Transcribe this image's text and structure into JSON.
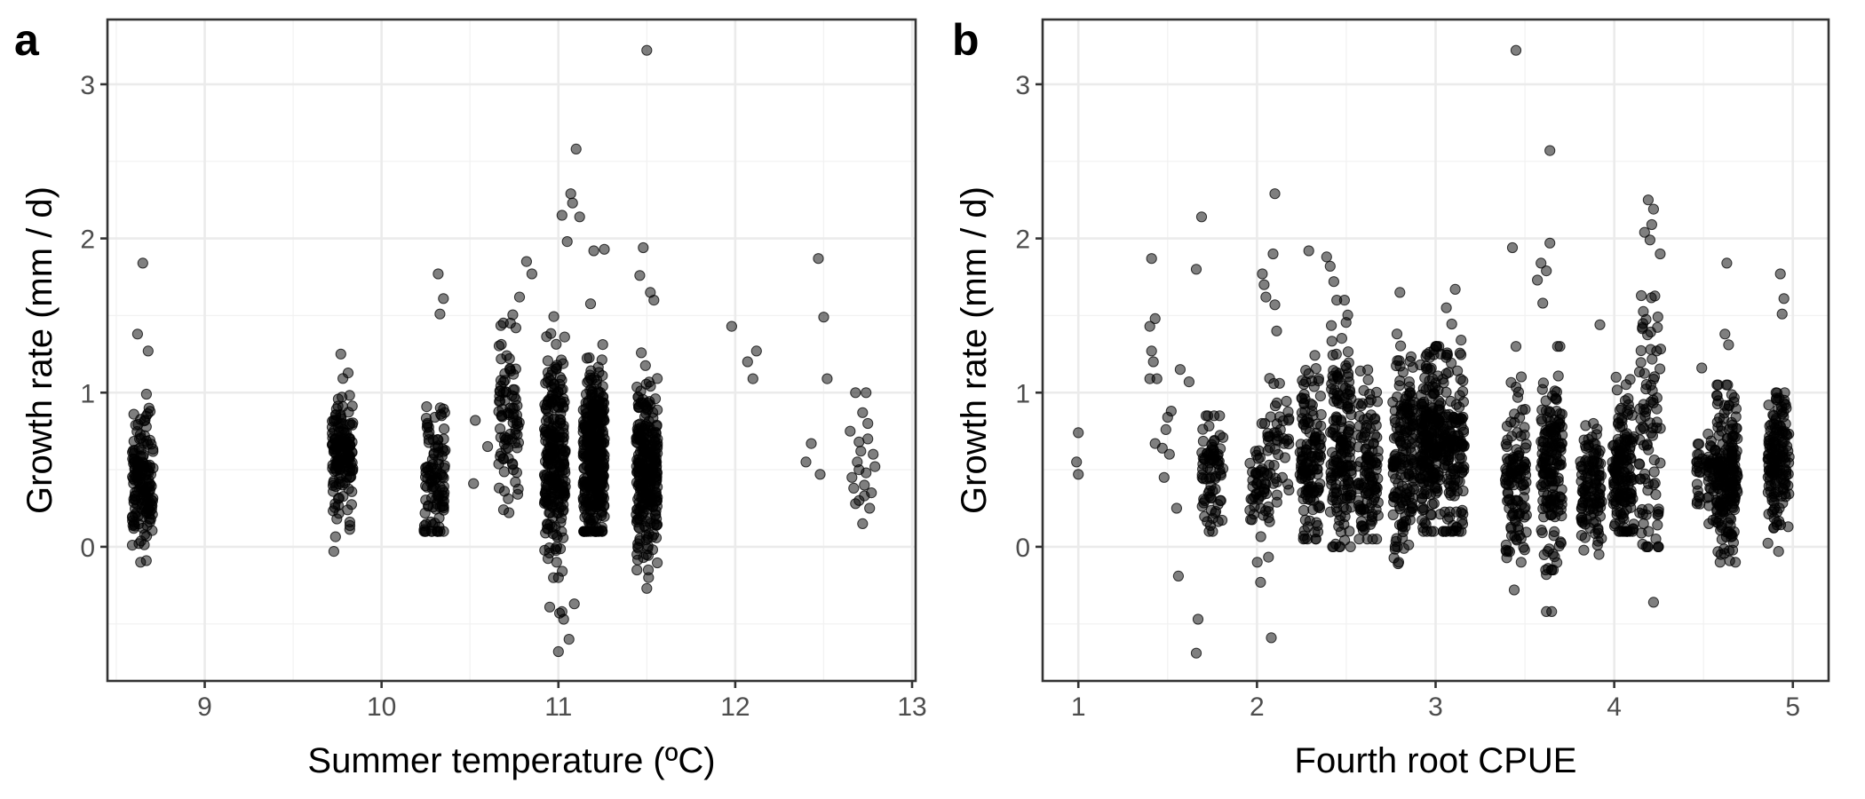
{
  "chart_data": [
    {
      "type": "scatter",
      "panel_label": "a",
      "xlabel": "Summer temperature (ºC)",
      "ylabel": "Growth rate (mm / d)",
      "xlim": [
        8.45,
        13.02
      ],
      "ylim": [
        -0.87,
        3.42
      ],
      "xticks": [
        9,
        10,
        11,
        12,
        13
      ],
      "yticks": [
        0,
        1,
        2,
        3
      ],
      "grid": true,
      "legend": "none",
      "point_color": "#000000",
      "point_opacity": 0.5,
      "clusters": [
        {
          "center": 8.65,
          "n": 160,
          "mean": 0.45,
          "sd": 0.22,
          "min": -0.1,
          "max": 1.4
        },
        {
          "center": 9.78,
          "n": 160,
          "mean": 0.6,
          "sd": 0.17,
          "min": -0.05,
          "max": 1.25
        },
        {
          "center": 10.3,
          "n": 110,
          "mean": 0.45,
          "sd": 0.22,
          "min": 0.1,
          "max": 1.1
        },
        {
          "center": 10.72,
          "n": 90,
          "mean": 0.85,
          "sd": 0.35,
          "min": 0.2,
          "max": 1.85
        },
        {
          "center": 10.98,
          "n": 260,
          "mean": 0.6,
          "sd": 0.35,
          "min": -0.7,
          "max": 2.0
        },
        {
          "center": 11.2,
          "n": 380,
          "mean": 0.6,
          "sd": 0.3,
          "min": 0.1,
          "max": 1.6
        },
        {
          "center": 11.5,
          "n": 280,
          "mean": 0.5,
          "sd": 0.28,
          "min": -0.15,
          "max": 1.5
        }
      ],
      "points": [
        {
          "x": 8.65,
          "y": 1.84
        },
        {
          "x": 8.62,
          "y": 1.38
        },
        {
          "x": 8.68,
          "y": 1.27
        },
        {
          "x": 8.67,
          "y": -0.09
        },
        {
          "x": 9.77,
          "y": 1.25
        },
        {
          "x": 9.73,
          "y": -0.03
        },
        {
          "x": 10.32,
          "y": 1.77
        },
        {
          "x": 10.35,
          "y": 1.61
        },
        {
          "x": 10.33,
          "y": 1.51
        },
        {
          "x": 10.34,
          "y": 0.85
        },
        {
          "x": 10.52,
          "y": 0.41
        },
        {
          "x": 10.53,
          "y": 0.82
        },
        {
          "x": 10.6,
          "y": 0.65
        },
        {
          "x": 10.82,
          "y": 1.85
        },
        {
          "x": 10.85,
          "y": 1.77
        },
        {
          "x": 10.78,
          "y": 1.62
        },
        {
          "x": 11.07,
          "y": 2.29
        },
        {
          "x": 11.08,
          "y": 2.23
        },
        {
          "x": 11.02,
          "y": 2.15
        },
        {
          "x": 11.1,
          "y": 2.58
        },
        {
          "x": 11.12,
          "y": 2.14
        },
        {
          "x": 11.05,
          "y": 1.98
        },
        {
          "x": 11.2,
          "y": 1.92
        },
        {
          "x": 11.26,
          "y": 1.93
        },
        {
          "x": 11.0,
          "y": -0.68
        },
        {
          "x": 11.03,
          "y": -0.47
        },
        {
          "x": 11.06,
          "y": -0.6
        },
        {
          "x": 11.02,
          "y": -0.42
        },
        {
          "x": 11.09,
          "y": -0.37
        },
        {
          "x": 11.0,
          "y": -0.2
        },
        {
          "x": 10.99,
          "y": -0.1
        },
        {
          "x": 11.5,
          "y": 3.22
        },
        {
          "x": 11.48,
          "y": 1.94
        },
        {
          "x": 11.46,
          "y": 1.76
        },
        {
          "x": 11.52,
          "y": 1.65
        },
        {
          "x": 11.54,
          "y": 1.6
        },
        {
          "x": 11.5,
          "y": -0.27
        },
        {
          "x": 11.51,
          "y": -0.2
        },
        {
          "x": 11.98,
          "y": 1.43
        },
        {
          "x": 12.07,
          "y": 1.2
        },
        {
          "x": 12.12,
          "y": 1.27
        },
        {
          "x": 12.1,
          "y": 1.09
        },
        {
          "x": 12.47,
          "y": 1.87
        },
        {
          "x": 12.5,
          "y": 1.49
        },
        {
          "x": 12.52,
          "y": 1.09
        },
        {
          "x": 12.43,
          "y": 0.67
        },
        {
          "x": 12.4,
          "y": 0.55
        },
        {
          "x": 12.48,
          "y": 0.47
        },
        {
          "x": 12.68,
          "y": 1.0
        },
        {
          "x": 12.74,
          "y": 1.0
        },
        {
          "x": 12.72,
          "y": 0.87
        },
        {
          "x": 12.7,
          "y": 0.3
        },
        {
          "x": 12.72,
          "y": 0.15
        },
        {
          "x": 12.65,
          "y": 0.75
        },
        {
          "x": 12.75,
          "y": 0.7
        },
        {
          "x": 12.78,
          "y": 0.6
        },
        {
          "x": 12.7,
          "y": 0.5
        },
        {
          "x": 12.66,
          "y": 0.45
        },
        {
          "x": 12.73,
          "y": 0.4
        },
        {
          "x": 12.77,
          "y": 0.35
        },
        {
          "x": 12.69,
          "y": 0.55
        },
        {
          "x": 12.76,
          "y": 0.25
        },
        {
          "x": 12.71,
          "y": 0.62
        },
        {
          "x": 12.67,
          "y": 0.38
        },
        {
          "x": 12.74,
          "y": 0.48
        },
        {
          "x": 12.79,
          "y": 0.52
        },
        {
          "x": 12.68,
          "y": 0.28
        },
        {
          "x": 12.75,
          "y": 0.8
        },
        {
          "x": 12.7,
          "y": 0.68
        },
        {
          "x": 12.73,
          "y": 0.33
        }
      ]
    },
    {
      "type": "scatter",
      "panel_label": "b",
      "xlabel": "Fourth root CPUE",
      "ylabel": "Growth rate (mm / d)",
      "xlim": [
        0.8,
        5.2
      ],
      "ylim": [
        -0.87,
        3.42
      ],
      "xticks": [
        1,
        2,
        3,
        4,
        5
      ],
      "yticks": [
        0,
        1,
        2,
        3
      ],
      "grid": true,
      "legend": "none",
      "point_color": "#000000",
      "point_opacity": 0.5,
      "clusters": [
        {
          "center": 1.75,
          "n": 80,
          "mean": 0.5,
          "sd": 0.2,
          "min": 0.1,
          "max": 0.85
        },
        {
          "center": 2.02,
          "n": 60,
          "mean": 0.4,
          "sd": 0.2,
          "min": -0.1,
          "max": 0.8
        },
        {
          "center": 2.12,
          "n": 40,
          "mean": 0.6,
          "sd": 0.25,
          "min": 0.1,
          "max": 1.1
        },
        {
          "center": 2.3,
          "n": 140,
          "mean": 0.6,
          "sd": 0.28,
          "min": 0.05,
          "max": 1.5
        },
        {
          "center": 2.47,
          "n": 170,
          "mean": 0.65,
          "sd": 0.35,
          "min": 0.0,
          "max": 1.6
        },
        {
          "center": 2.62,
          "n": 120,
          "mean": 0.5,
          "sd": 0.25,
          "min": 0.05,
          "max": 1.45
        },
        {
          "center": 2.82,
          "n": 170,
          "mean": 0.6,
          "sd": 0.3,
          "min": -0.1,
          "max": 1.4
        },
        {
          "center": 2.97,
          "n": 220,
          "mean": 0.7,
          "sd": 0.28,
          "min": 0.1,
          "max": 1.3
        },
        {
          "center": 3.1,
          "n": 150,
          "mean": 0.65,
          "sd": 0.3,
          "min": 0.1,
          "max": 1.5
        },
        {
          "center": 3.45,
          "n": 120,
          "mean": 0.45,
          "sd": 0.28,
          "min": -0.1,
          "max": 1.2
        },
        {
          "center": 3.65,
          "n": 170,
          "mean": 0.5,
          "sd": 0.3,
          "min": -0.15,
          "max": 1.3
        },
        {
          "center": 3.87,
          "n": 120,
          "mean": 0.4,
          "sd": 0.2,
          "min": -0.05,
          "max": 0.8
        },
        {
          "center": 4.05,
          "n": 160,
          "mean": 0.5,
          "sd": 0.25,
          "min": 0.1,
          "max": 1.1
        },
        {
          "center": 4.2,
          "n": 90,
          "mean": 0.7,
          "sd": 0.5,
          "min": 0.0,
          "max": 1.9
        },
        {
          "center": 4.52,
          "n": 60,
          "mean": 0.5,
          "sd": 0.15,
          "min": 0.15,
          "max": 0.9
        },
        {
          "center": 4.63,
          "n": 200,
          "mean": 0.45,
          "sd": 0.25,
          "min": -0.1,
          "max": 1.05
        },
        {
          "center": 4.92,
          "n": 160,
          "mean": 0.55,
          "sd": 0.22,
          "min": 0.0,
          "max": 1.0
        }
      ],
      "points": [
        {
          "x": 1.0,
          "y": 0.74
        },
        {
          "x": 0.99,
          "y": 0.55
        },
        {
          "x": 1.0,
          "y": 0.47
        },
        {
          "x": 1.41,
          "y": 1.87
        },
        {
          "x": 1.43,
          "y": 1.48
        },
        {
          "x": 1.4,
          "y": 1.43
        },
        {
          "x": 1.41,
          "y": 1.27
        },
        {
          "x": 1.42,
          "y": 1.2
        },
        {
          "x": 1.4,
          "y": 1.09
        },
        {
          "x": 1.44,
          "y": 1.09
        },
        {
          "x": 1.43,
          "y": 0.67
        },
        {
          "x": 1.47,
          "y": 0.64
        },
        {
          "x": 1.5,
          "y": 0.84
        },
        {
          "x": 1.52,
          "y": 0.88
        },
        {
          "x": 1.49,
          "y": 0.76
        },
        {
          "x": 1.51,
          "y": 0.6
        },
        {
          "x": 1.48,
          "y": 0.45
        },
        {
          "x": 1.55,
          "y": 0.25
        },
        {
          "x": 1.56,
          "y": -0.19
        },
        {
          "x": 1.57,
          "y": 1.15
        },
        {
          "x": 1.62,
          "y": 1.07
        },
        {
          "x": 1.66,
          "y": 1.8
        },
        {
          "x": 1.69,
          "y": 2.14
        },
        {
          "x": 1.67,
          "y": -0.47
        },
        {
          "x": 1.66,
          "y": -0.69
        },
        {
          "x": 2.03,
          "y": 1.77
        },
        {
          "x": 2.04,
          "y": 1.7
        },
        {
          "x": 2.05,
          "y": 1.62
        },
        {
          "x": 2.1,
          "y": 2.29
        },
        {
          "x": 2.09,
          "y": 1.9
        },
        {
          "x": 2.1,
          "y": 1.57
        },
        {
          "x": 2.11,
          "y": 1.4
        },
        {
          "x": 2.08,
          "y": -0.59
        },
        {
          "x": 2.02,
          "y": -0.23
        },
        {
          "x": 2.29,
          "y": 1.92
        },
        {
          "x": 2.39,
          "y": 1.88
        },
        {
          "x": 2.41,
          "y": 1.82
        },
        {
          "x": 2.43,
          "y": 1.72
        },
        {
          "x": 2.49,
          "y": 1.6
        },
        {
          "x": 2.8,
          "y": 1.65
        },
        {
          "x": 2.79,
          "y": -0.11
        },
        {
          "x": 3.06,
          "y": 1.55
        },
        {
          "x": 3.11,
          "y": 1.67
        },
        {
          "x": 3.45,
          "y": 3.22
        },
        {
          "x": 3.43,
          "y": 1.94
        },
        {
          "x": 3.45,
          "y": 1.3
        },
        {
          "x": 3.44,
          "y": -0.28
        },
        {
          "x": 3.57,
          "y": 1.73
        },
        {
          "x": 3.59,
          "y": 1.84
        },
        {
          "x": 3.62,
          "y": 1.79
        },
        {
          "x": 3.64,
          "y": 1.97
        },
        {
          "x": 3.64,
          "y": 2.57
        },
        {
          "x": 3.6,
          "y": 1.58
        },
        {
          "x": 3.62,
          "y": -0.42
        },
        {
          "x": 3.65,
          "y": -0.42
        },
        {
          "x": 3.62,
          "y": -0.18
        },
        {
          "x": 3.63,
          "y": -0.14
        },
        {
          "x": 3.92,
          "y": 1.44
        },
        {
          "x": 4.19,
          "y": 2.25
        },
        {
          "x": 4.22,
          "y": 2.19
        },
        {
          "x": 4.17,
          "y": 2.04
        },
        {
          "x": 4.21,
          "y": 2.09
        },
        {
          "x": 4.2,
          "y": 1.99
        },
        {
          "x": 4.22,
          "y": -0.36
        },
        {
          "x": 4.49,
          "y": 1.16
        },
        {
          "x": 4.63,
          "y": 1.84
        },
        {
          "x": 4.62,
          "y": 1.38
        },
        {
          "x": 4.64,
          "y": 1.31
        },
        {
          "x": 4.93,
          "y": 1.77
        },
        {
          "x": 4.95,
          "y": 1.61
        },
        {
          "x": 4.94,
          "y": 1.51
        },
        {
          "x": 4.92,
          "y": -0.03
        }
      ]
    }
  ]
}
